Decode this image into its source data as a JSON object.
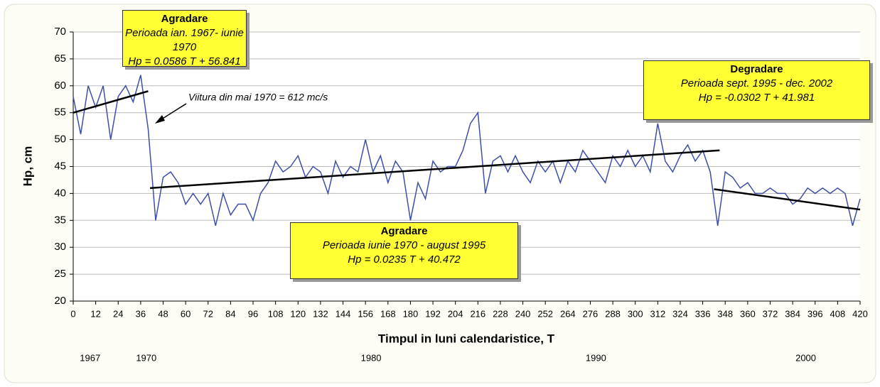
{
  "chart_data": {
    "type": "line",
    "y_label": "Hp, cm",
    "x_label": "Timpul in luni calendaristice, T",
    "arrow_note": "Viitura din mai 1970 = 612 mc/s",
    "annotations": [
      {
        "title": "Agradare",
        "period": "Perioada ian. 1967- iunie 1970",
        "equation": "Hp = 0.0586 T + 56.841"
      },
      {
        "title": "Agradare",
        "period": "Perioada iunie 1970 - august 1995",
        "equation": "Hp = 0.0235 T + 40.472"
      },
      {
        "title": "Degradare",
        "period": "Perioada sept. 1995 - dec. 2002",
        "equation": "Hp = -0.0302 T + 41.981"
      }
    ],
    "x": [
      0,
      4,
      8,
      12,
      16,
      20,
      24,
      28,
      32,
      36,
      40,
      44,
      48,
      52,
      56,
      60,
      64,
      68,
      72,
      76,
      80,
      84,
      88,
      92,
      96,
      100,
      104,
      108,
      112,
      116,
      120,
      124,
      128,
      132,
      136,
      140,
      144,
      148,
      152,
      156,
      160,
      164,
      168,
      172,
      176,
      180,
      184,
      188,
      192,
      196,
      200,
      204,
      208,
      212,
      216,
      220,
      224,
      228,
      232,
      236,
      240,
      244,
      248,
      252,
      256,
      260,
      264,
      268,
      272,
      276,
      280,
      284,
      288,
      292,
      296,
      300,
      304,
      308,
      312,
      316,
      320,
      324,
      328,
      332,
      336,
      340,
      344,
      348,
      352,
      356,
      360,
      364,
      368,
      372,
      376,
      380,
      384,
      388,
      392,
      396,
      400,
      404,
      408,
      412,
      416,
      420
    ],
    "series": [
      {
        "color": "#3f4fa8",
        "values": [
          58,
          51,
          60,
          56,
          60,
          50,
          58,
          60,
          57,
          62,
          52,
          35,
          43,
          44,
          42,
          38,
          40,
          38,
          40,
          34,
          40,
          36,
          38,
          38,
          35,
          40,
          42,
          46,
          44,
          45,
          47,
          43,
          45,
          44,
          40,
          46,
          43,
          45,
          44,
          50,
          44,
          47,
          42,
          46,
          44,
          35,
          42,
          39,
          46,
          44,
          45,
          45,
          48,
          53,
          55,
          40,
          46,
          47,
          44,
          47,
          44,
          42,
          46,
          44,
          46,
          42,
          46,
          44,
          48,
          46,
          44,
          42,
          47,
          45,
          48,
          45,
          47,
          44,
          53,
          46,
          44,
          47,
          49,
          46,
          48,
          44,
          34,
          44,
          43,
          41,
          42,
          40,
          40,
          41,
          40,
          40,
          38,
          39,
          41,
          40,
          41,
          40,
          41,
          40,
          34,
          39
        ]
      }
    ],
    "trend_lines": [
      {
        "color": "#000000",
        "x": [
          0,
          40
        ],
        "values": [
          55,
          59
        ]
      },
      {
        "color": "#000000",
        "x": [
          41,
          345
        ],
        "values": [
          41,
          48
        ]
      },
      {
        "color": "#000000",
        "x": [
          342,
          420
        ],
        "values": [
          40.8,
          37
        ]
      }
    ],
    "xlim": [
      0,
      420
    ],
    "xticks": [
      0,
      12,
      24,
      36,
      48,
      60,
      72,
      84,
      96,
      108,
      120,
      132,
      144,
      156,
      168,
      180,
      192,
      204,
      216,
      228,
      240,
      252,
      264,
      276,
      288,
      300,
      312,
      324,
      336,
      348,
      360,
      372,
      384,
      396,
      408,
      420
    ],
    "ylim": [
      20,
      70
    ],
    "yticks": [
      20,
      25,
      30,
      35,
      40,
      45,
      50,
      55,
      60,
      65,
      70
    ],
    "x2ticks": [
      {
        "value": 9,
        "label": "1967"
      },
      {
        "value": 39,
        "label": "1970"
      },
      {
        "value": 159,
        "label": "1980"
      },
      {
        "value": 279,
        "label": "1990"
      },
      {
        "value": 391,
        "label": "2000"
      }
    ],
    "grid": true
  }
}
